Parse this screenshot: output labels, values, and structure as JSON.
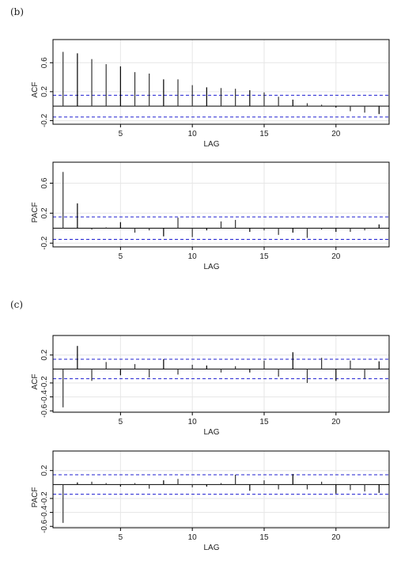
{
  "panels": [
    {
      "label": "(b)"
    },
    {
      "label": "(c)"
    }
  ],
  "colors": {
    "bar": "#000000",
    "bar_light": "#999999",
    "band": "#1f1fd1",
    "grid": "#e6e6e6",
    "frame": "#000000"
  },
  "chart_data": [
    {
      "type": "bar",
      "panel": "(b)",
      "xlabel": "LAG",
      "ylabel": "ACF",
      "xlim": [
        0.3,
        23.7
      ],
      "ylim": [
        -0.25,
        0.92
      ],
      "xticks": [
        5,
        10,
        15,
        20
      ],
      "yticks": [
        -0.2,
        0.2,
        0.6
      ],
      "ytick_labels": [
        "-0.2",
        "0.2",
        "0.6"
      ],
      "grid": true,
      "confidence_band": [
        0.15,
        -0.15
      ],
      "lags": [
        1,
        2,
        3,
        4,
        5,
        6,
        7,
        8,
        9,
        10,
        11,
        12,
        13,
        14,
        15,
        16,
        17,
        18,
        19,
        20,
        21,
        22,
        23
      ],
      "values": [
        0.75,
        0.73,
        0.65,
        0.58,
        0.55,
        0.47,
        0.45,
        0.37,
        0.37,
        0.29,
        0.26,
        0.25,
        0.24,
        0.22,
        0.19,
        0.13,
        0.09,
        0.04,
        0.02,
        -0.02,
        -0.07,
        -0.09,
        -0.11
      ]
    },
    {
      "type": "bar",
      "panel": "(b)",
      "xlabel": "LAG",
      "ylabel": "PACF",
      "xlim": [
        0.3,
        23.7
      ],
      "ylim": [
        -0.25,
        0.88
      ],
      "xticks": [
        5,
        10,
        15,
        20
      ],
      "yticks": [
        -0.2,
        0.2,
        0.6
      ],
      "ytick_labels": [
        "-0.2",
        "0.2",
        "0.6"
      ],
      "grid": true,
      "confidence_band": [
        0.15,
        -0.15
      ],
      "lags": [
        1,
        2,
        3,
        4,
        5,
        6,
        7,
        8,
        9,
        10,
        11,
        12,
        13,
        14,
        15,
        16,
        17,
        18,
        19,
        20,
        21,
        22,
        23
      ],
      "values": [
        0.75,
        0.33,
        -0.02,
        0.01,
        0.08,
        -0.06,
        -0.03,
        -0.11,
        0.14,
        -0.12,
        -0.03,
        0.09,
        0.11,
        -0.05,
        -0.03,
        -0.09,
        -0.06,
        -0.13,
        -0.02,
        -0.05,
        -0.05,
        -0.03,
        0.05
      ]
    },
    {
      "type": "bar",
      "panel": "(c)",
      "xlabel": "LAG",
      "ylabel": "ACF",
      "xlim": [
        0.3,
        23.7
      ],
      "ylim": [
        -0.62,
        0.48
      ],
      "xticks": [
        5,
        10,
        15,
        20
      ],
      "yticks": [
        -0.6,
        -0.4,
        -0.2,
        0.2
      ],
      "ytick_labels": [
        "-0.6",
        "-0.4",
        "-0.2",
        "0.2"
      ],
      "grid": true,
      "confidence_band": [
        0.14,
        -0.14
      ],
      "lags": [
        1,
        2,
        3,
        4,
        5,
        6,
        7,
        8,
        9,
        10,
        11,
        12,
        13,
        14,
        15,
        16,
        17,
        18,
        19,
        20,
        21,
        22,
        23
      ],
      "values": [
        -0.55,
        0.33,
        -0.17,
        0.1,
        -0.09,
        0.07,
        -0.12,
        0.14,
        -0.08,
        0.06,
        0.05,
        -0.05,
        0.04,
        -0.05,
        0.12,
        -0.11,
        0.24,
        -0.2,
        0.16,
        -0.17,
        0.12,
        -0.14,
        0.11
      ]
    },
    {
      "type": "bar",
      "panel": "(c)",
      "xlabel": "LAG",
      "ylabel": "PACF",
      "xlim": [
        0.3,
        23.7
      ],
      "ylim": [
        -0.62,
        0.48
      ],
      "xticks": [
        5,
        10,
        15,
        20
      ],
      "yticks": [
        -0.6,
        -0.4,
        -0.2,
        0.2
      ],
      "ytick_labels": [
        "-0.6",
        "-0.4",
        "-0.2",
        "0.2"
      ],
      "grid": true,
      "confidence_band": [
        0.14,
        -0.14
      ],
      "lags": [
        1,
        2,
        3,
        4,
        5,
        6,
        7,
        8,
        9,
        10,
        11,
        12,
        13,
        14,
        15,
        16,
        17,
        18,
        19,
        20,
        21,
        22,
        23
      ],
      "values": [
        -0.55,
        0.03,
        0.04,
        0.02,
        -0.03,
        0.02,
        -0.06,
        0.06,
        0.08,
        -0.04,
        -0.03,
        0.02,
        0.14,
        -0.09,
        0.06,
        -0.07,
        0.15,
        -0.07,
        0.04,
        -0.13,
        -0.08,
        -0.1,
        -0.12
      ]
    }
  ]
}
